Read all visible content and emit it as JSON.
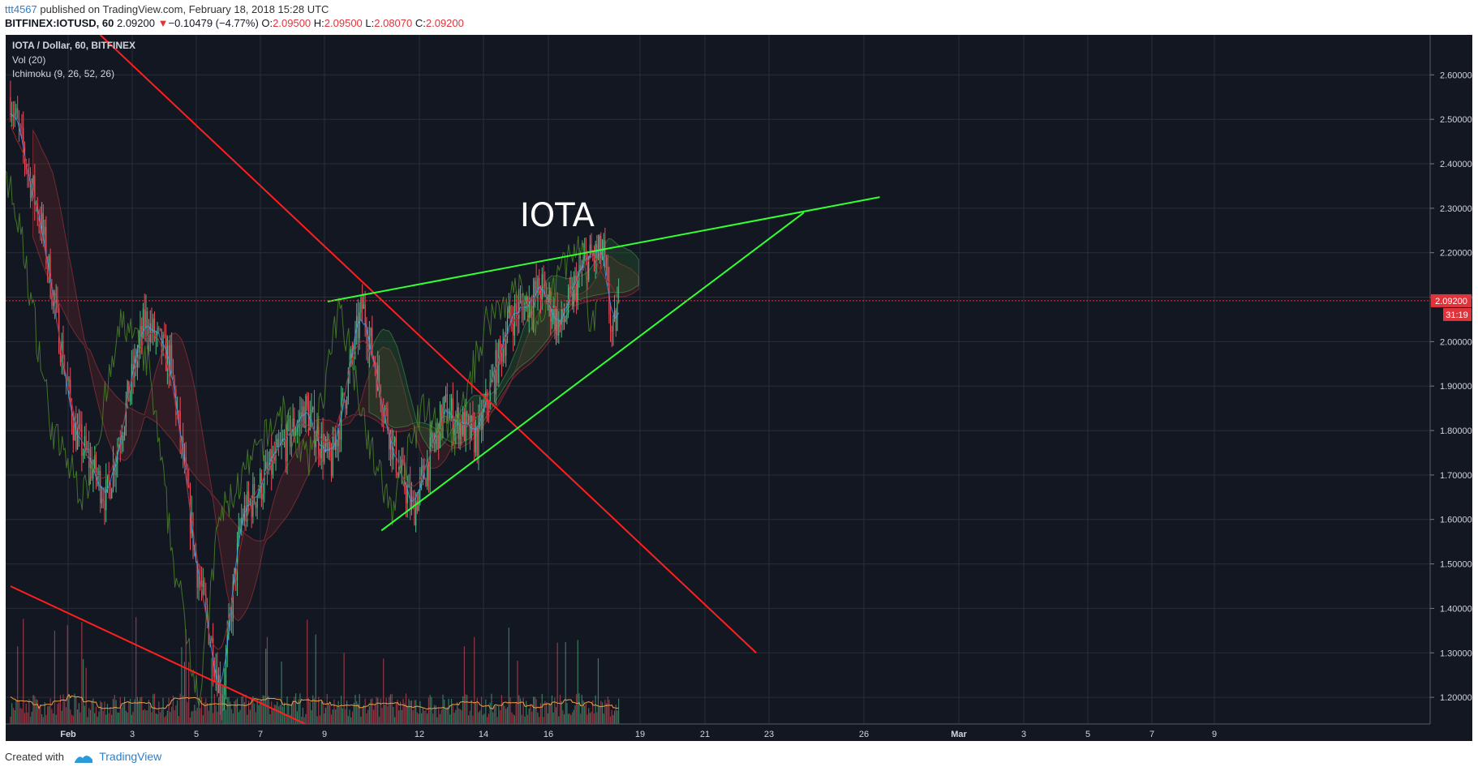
{
  "header": {
    "user": "ttt4567",
    "published": "published on TradingView.com, February 18, 2018 15:28 UTC",
    "symbol": "BITFINEX:IOTUSD, 60",
    "last": "2.09200",
    "change": "−0.10479 (−4.77%)",
    "o_label": "O:",
    "o_value": "2.09500",
    "h_label": "H:",
    "h_value": "2.09500",
    "l_label": "L:",
    "l_value": "2.08070",
    "c_label": "C:",
    "c_value": "2.09200"
  },
  "legend": {
    "line1": "IOTA / Dollar, 60, BITFINEX",
    "line2": "Vol (20)",
    "line3": "Ichimoku (9, 26, 52, 26)"
  },
  "annotation": "IOTA",
  "footer": {
    "created": "Created with",
    "brand": "TradingView"
  },
  "colors": {
    "background": "#131722",
    "grid": "#2a2e39",
    "up": "#53b987",
    "down": "#eb4d5c",
    "trend_red": "#ff1f1f",
    "trend_green": "#33ff33",
    "price_tag": "#e0343c"
  },
  "chart_data": {
    "type": "candlestick",
    "price_axis": {
      "ticks": [
        "2.60000",
        "2.50000",
        "2.40000",
        "2.30000",
        "2.20000",
        "2.10000",
        "2.00000",
        "1.90000",
        "1.80000",
        "1.70000",
        "1.60000",
        "1.50000",
        "1.40000",
        "1.30000",
        "1.20000"
      ],
      "ylim": [
        1.14,
        2.69
      ]
    },
    "time_axis": {
      "ticks": [
        "Feb",
        "3",
        "5",
        "7",
        "9",
        "12",
        "14",
        "16",
        "19",
        "21",
        "23",
        "26",
        "Mar",
        "3",
        "5",
        "7",
        "9"
      ]
    },
    "current_price": {
      "label": "2.09200",
      "value": 2.092
    },
    "countdown": "31:19",
    "price_anchors": [
      {
        "t": 0,
        "p": 2.55
      },
      {
        "t": 0.5,
        "p": 2.25
      },
      {
        "t": 1.0,
        "p": 1.8
      },
      {
        "t": 1.5,
        "p": 1.65
      },
      {
        "t": 2.1,
        "p": 2.05
      },
      {
        "t": 2.5,
        "p": 1.95
      },
      {
        "t": 2.9,
        "p": 1.5
      },
      {
        "t": 3.3,
        "p": 1.2
      },
      {
        "t": 3.6,
        "p": 1.6
      },
      {
        "t": 4.2,
        "p": 1.75
      },
      {
        "t": 4.6,
        "p": 1.85
      },
      {
        "t": 5.0,
        "p": 1.72
      },
      {
        "t": 5.5,
        "p": 2.08
      },
      {
        "t": 6.0,
        "p": 1.75
      },
      {
        "t": 6.3,
        "p": 1.62
      },
      {
        "t": 6.8,
        "p": 1.85
      },
      {
        "t": 7.3,
        "p": 1.78
      },
      {
        "t": 7.8,
        "p": 2.05
      },
      {
        "t": 8.3,
        "p": 2.12
      },
      {
        "t": 8.6,
        "p": 2.03
      },
      {
        "t": 9.0,
        "p": 2.18
      },
      {
        "t": 9.3,
        "p": 2.2
      },
      {
        "t": 9.45,
        "p": 2.0
      },
      {
        "t": 9.55,
        "p": 2.09
      }
    ],
    "trendlines": [
      {
        "name": "red-resistance",
        "color": "red",
        "t1": 1.4,
        "p1": 2.69,
        "t2": 11.7,
        "p2": 1.3
      },
      {
        "name": "red-lower",
        "color": "red",
        "t1": 0.0,
        "p1": 1.45,
        "t2": 4.6,
        "p2": 1.14
      },
      {
        "name": "green-upper",
        "color": "green",
        "t1": 4.95,
        "p1": 2.09,
        "t2": 13.65,
        "p2": 2.325
      },
      {
        "name": "green-lower",
        "color": "green",
        "t1": 5.8,
        "p1": 1.575,
        "t2": 12.45,
        "p2": 2.29
      }
    ],
    "title": "IOTA / Dollar, 60, BITFINEX"
  }
}
